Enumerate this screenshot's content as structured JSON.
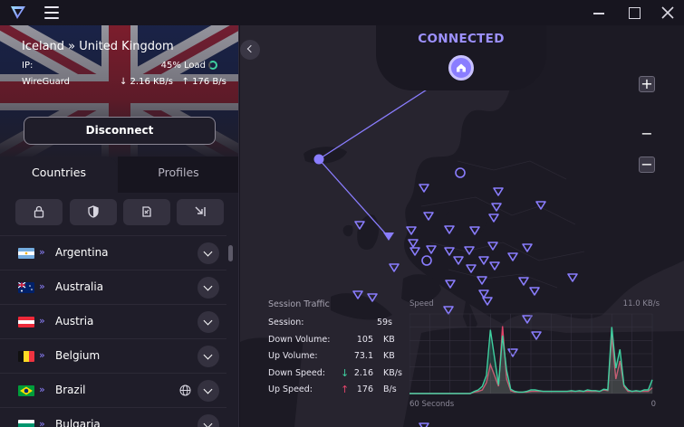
{
  "titlebar": {
    "logo_icon": "protonvpn-logo-icon",
    "menu_icon": "hamburger-menu-icon"
  },
  "connection": {
    "route": "Iceland » United Kingdom",
    "ip_label": "IP:",
    "load": "45% Load",
    "protocol": "WireGuard",
    "down_speed": "↓ 2.16 KB/s",
    "up_speed": "↑ 176 B/s",
    "disconnect_label": "Disconnect"
  },
  "tabs": [
    {
      "label": "Countries",
      "active": true
    },
    {
      "label": "Profiles",
      "active": false
    }
  ],
  "filters": [
    {
      "icon": "secure-core-lock-icon"
    },
    {
      "icon": "shield-netshield-icon"
    },
    {
      "icon": "p2p-icon"
    },
    {
      "icon": "tor-exit-icon"
    }
  ],
  "countries": [
    {
      "name": "Argentina",
      "flag": "AR"
    },
    {
      "name": "Australia",
      "flag": "AU"
    },
    {
      "name": "Austria",
      "flag": "AT"
    },
    {
      "name": "Belgium",
      "flag": "BE"
    },
    {
      "name": "Brazil",
      "flag": "BR",
      "has_globe": true
    },
    {
      "name": "Bulgaria",
      "flag": "BG"
    }
  ],
  "map": {
    "status": "CONNECTED",
    "zoom_in": "+",
    "zoom_mid": "−",
    "zoom_out": "−"
  },
  "session_traffic": {
    "title": "Session Traffic",
    "rows": [
      {
        "label": "Session:",
        "value": "59s",
        "unit": ""
      },
      {
        "label": "Down Volume:",
        "value": "105",
        "unit": "KB"
      },
      {
        "label": "Up Volume:",
        "value": "73.1",
        "unit": "KB"
      },
      {
        "label": "Down Speed:",
        "value": "2.16",
        "unit": "KB/s",
        "arrow": "↓"
      },
      {
        "label": "Up Speed:",
        "value": "176",
        "unit": "B/s",
        "arrow": "↑"
      }
    ]
  },
  "speed_graph": {
    "title": "Speed",
    "max_label": "11.0 KB/s",
    "x_left_label": "60 Seconds",
    "x_right_label": "0",
    "colors": {
      "down": "#3fd0a0",
      "up": "#e2456a"
    }
  },
  "chart_data": {
    "type": "line",
    "title": "Speed",
    "xlabel": "",
    "ylabel": "",
    "ylim": [
      0,
      11.0
    ],
    "x": [
      60,
      59,
      58,
      57,
      56,
      55,
      54,
      53,
      52,
      51,
      50,
      49,
      48,
      47,
      46,
      45,
      44,
      43,
      42,
      41,
      40,
      39,
      38,
      37,
      36,
      35,
      34,
      33,
      32,
      31,
      30,
      29,
      28,
      27,
      26,
      25,
      24,
      23,
      22,
      21,
      20,
      19,
      18,
      17,
      16,
      15,
      14,
      13,
      12,
      11,
      10,
      9,
      8,
      7,
      6,
      5,
      4,
      3,
      2,
      1,
      0
    ],
    "series": [
      {
        "values": [
          0,
          0,
          0,
          0,
          0,
          0,
          0,
          0,
          0,
          0,
          0,
          0,
          0,
          0,
          0,
          0,
          0.3,
          0.5,
          1.0,
          2.5,
          8.8,
          5.0,
          1.2,
          8.0,
          3.2,
          0.6,
          0.3,
          0.2,
          0.2,
          0.3,
          0.5,
          0.5,
          0.4,
          0.3,
          0.3,
          0.3,
          0.3,
          0.3,
          0.3,
          0.3,
          0.4,
          0.3,
          0.4,
          0.3,
          0.5,
          0.4,
          0.4,
          0.3,
          0.6,
          0.5,
          9.2,
          3.5,
          6.1,
          1.2,
          0.5,
          0.3,
          0.4,
          0.3,
          0.5,
          0.5,
          1.9
        ]
      },
      {
        "values": [
          0,
          0,
          0,
          0,
          0,
          0,
          0,
          0,
          0,
          0,
          0,
          0,
          0,
          0,
          0,
          0,
          0.2,
          0.3,
          0.5,
          1.5,
          4.0,
          2.5,
          1.0,
          9.3,
          2.0,
          0.4,
          0.2,
          0.2,
          0.2,
          0.2,
          0.3,
          0.3,
          0.3,
          0.3,
          0.3,
          0.3,
          0.3,
          0.3,
          0.3,
          0.3,
          0.3,
          0.3,
          0.3,
          0.3,
          0.3,
          0.3,
          0.3,
          0.3,
          0.5,
          0.4,
          8.0,
          2.0,
          4.5,
          1.0,
          0.3,
          0.3,
          0.3,
          0.3,
          0.3,
          0.3,
          0.8
        ]
      }
    ]
  }
}
